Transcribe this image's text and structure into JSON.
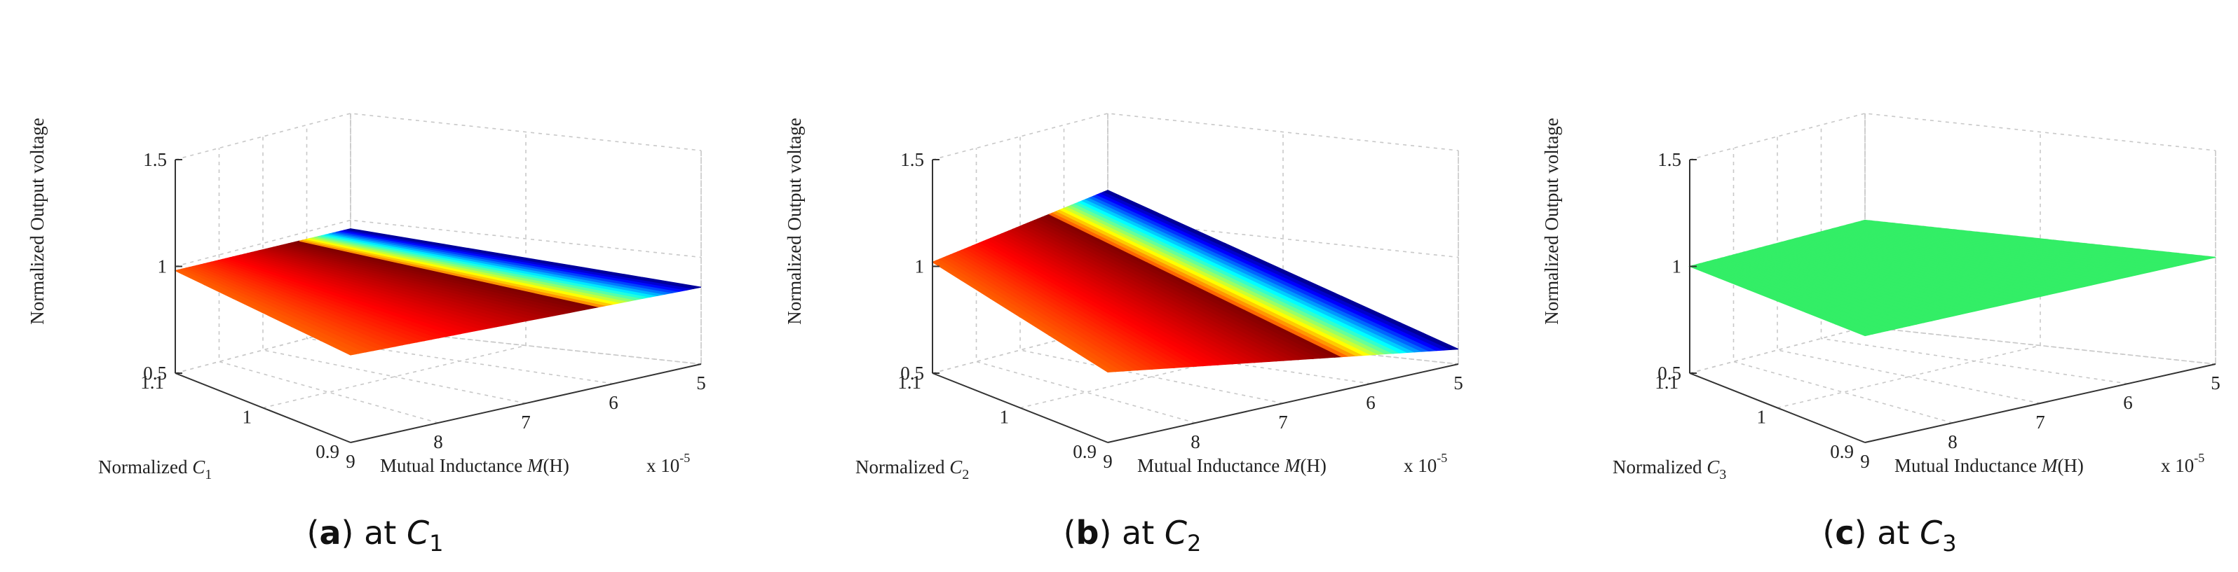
{
  "colors": {
    "colormap": [
      "#00007f",
      "#0000ff",
      "#007fff",
      "#00ffff",
      "#7fff7f",
      "#ffff00",
      "#ff7f00",
      "#ff0000",
      "#7f0000"
    ],
    "flat_surface": "#33ee66"
  },
  "chart_data": [
    {
      "type": "surface",
      "caption": {
        "letter": "a",
        "text_before": ") at ",
        "var": "C",
        "sub": "1"
      },
      "zlabel": "Normalized Output voltage",
      "ylabel": {
        "text": "Normalized ",
        "var": "C",
        "sub": "1"
      },
      "xlabel": {
        "text": "Mutual Inductance ",
        "var": "M",
        "unit": "(H)",
        "scale": "x 10",
        "exp": "-5"
      },
      "x_ticks": [
        "9",
        "8",
        "7",
        "6",
        "5"
      ],
      "y_ticks": [
        "0.9",
        "1",
        "1.1"
      ],
      "z_ticks": [
        "0.5",
        "1",
        "1.5"
      ],
      "xlim": [
        5,
        9
      ],
      "ylim": [
        0.9,
        1.1
      ],
      "zlim": [
        0.5,
        1.5
      ],
      "grid": true,
      "corners": {
        "M9_C1.1": 0.98,
        "M9_C0.9": 0.91,
        "M5_C0.9": 0.86,
        "M5_C1.1": 0.96
      },
      "ridge_M": 6.2,
      "shading": "colormap"
    },
    {
      "type": "surface",
      "caption": {
        "letter": "b",
        "text_before": ") at ",
        "var": "C",
        "sub": "2"
      },
      "zlabel": "Normalized Output voltage",
      "ylabel": {
        "text": "Normalized ",
        "var": "C",
        "sub": "2"
      },
      "xlabel": {
        "text": "Mutual Inductance ",
        "var": "M",
        "unit": "(H)",
        "scale": "x 10",
        "exp": "-5"
      },
      "x_ticks": [
        "9",
        "8",
        "7",
        "6",
        "5"
      ],
      "y_ticks": [
        "0.9",
        "1",
        "1.1"
      ],
      "z_ticks": [
        "0.5",
        "1",
        "1.5"
      ],
      "xlim": [
        5,
        9
      ],
      "ylim": [
        0.9,
        1.1
      ],
      "zlim": [
        0.5,
        1.5
      ],
      "grid": true,
      "corners": {
        "M9_C1.1": 1.02,
        "M9_C0.9": 0.83,
        "M5_C0.9": 0.57,
        "M5_C1.1": 1.14
      },
      "ridge_M": 6.3,
      "shading": "colormap"
    },
    {
      "type": "surface",
      "caption": {
        "letter": "c",
        "text_before": ") at ",
        "var": "C",
        "sub": "3"
      },
      "zlabel": "Normalized Output voltage",
      "ylabel": {
        "text": "Normalized ",
        "var": "C",
        "sub": "3"
      },
      "xlabel": {
        "text": "Mutual Inductance ",
        "var": "M",
        "unit": "(H)",
        "scale": "x 10",
        "exp": "-5"
      },
      "x_ticks": [
        "9",
        "8",
        "7",
        "6",
        "5"
      ],
      "y_ticks": [
        "0.9",
        "1",
        "1.1"
      ],
      "z_ticks": [
        "0.5",
        "1",
        "1.5"
      ],
      "xlim": [
        5,
        9
      ],
      "ylim": [
        0.9,
        1.1
      ],
      "zlim": [
        0.5,
        1.5
      ],
      "grid": true,
      "corners": {
        "M9_C1.1": 1.0,
        "M9_C0.9": 1.0,
        "M5_C0.9": 1.0,
        "M5_C1.1": 1.0
      },
      "ridge_M": 7.0,
      "shading": "flat"
    }
  ]
}
